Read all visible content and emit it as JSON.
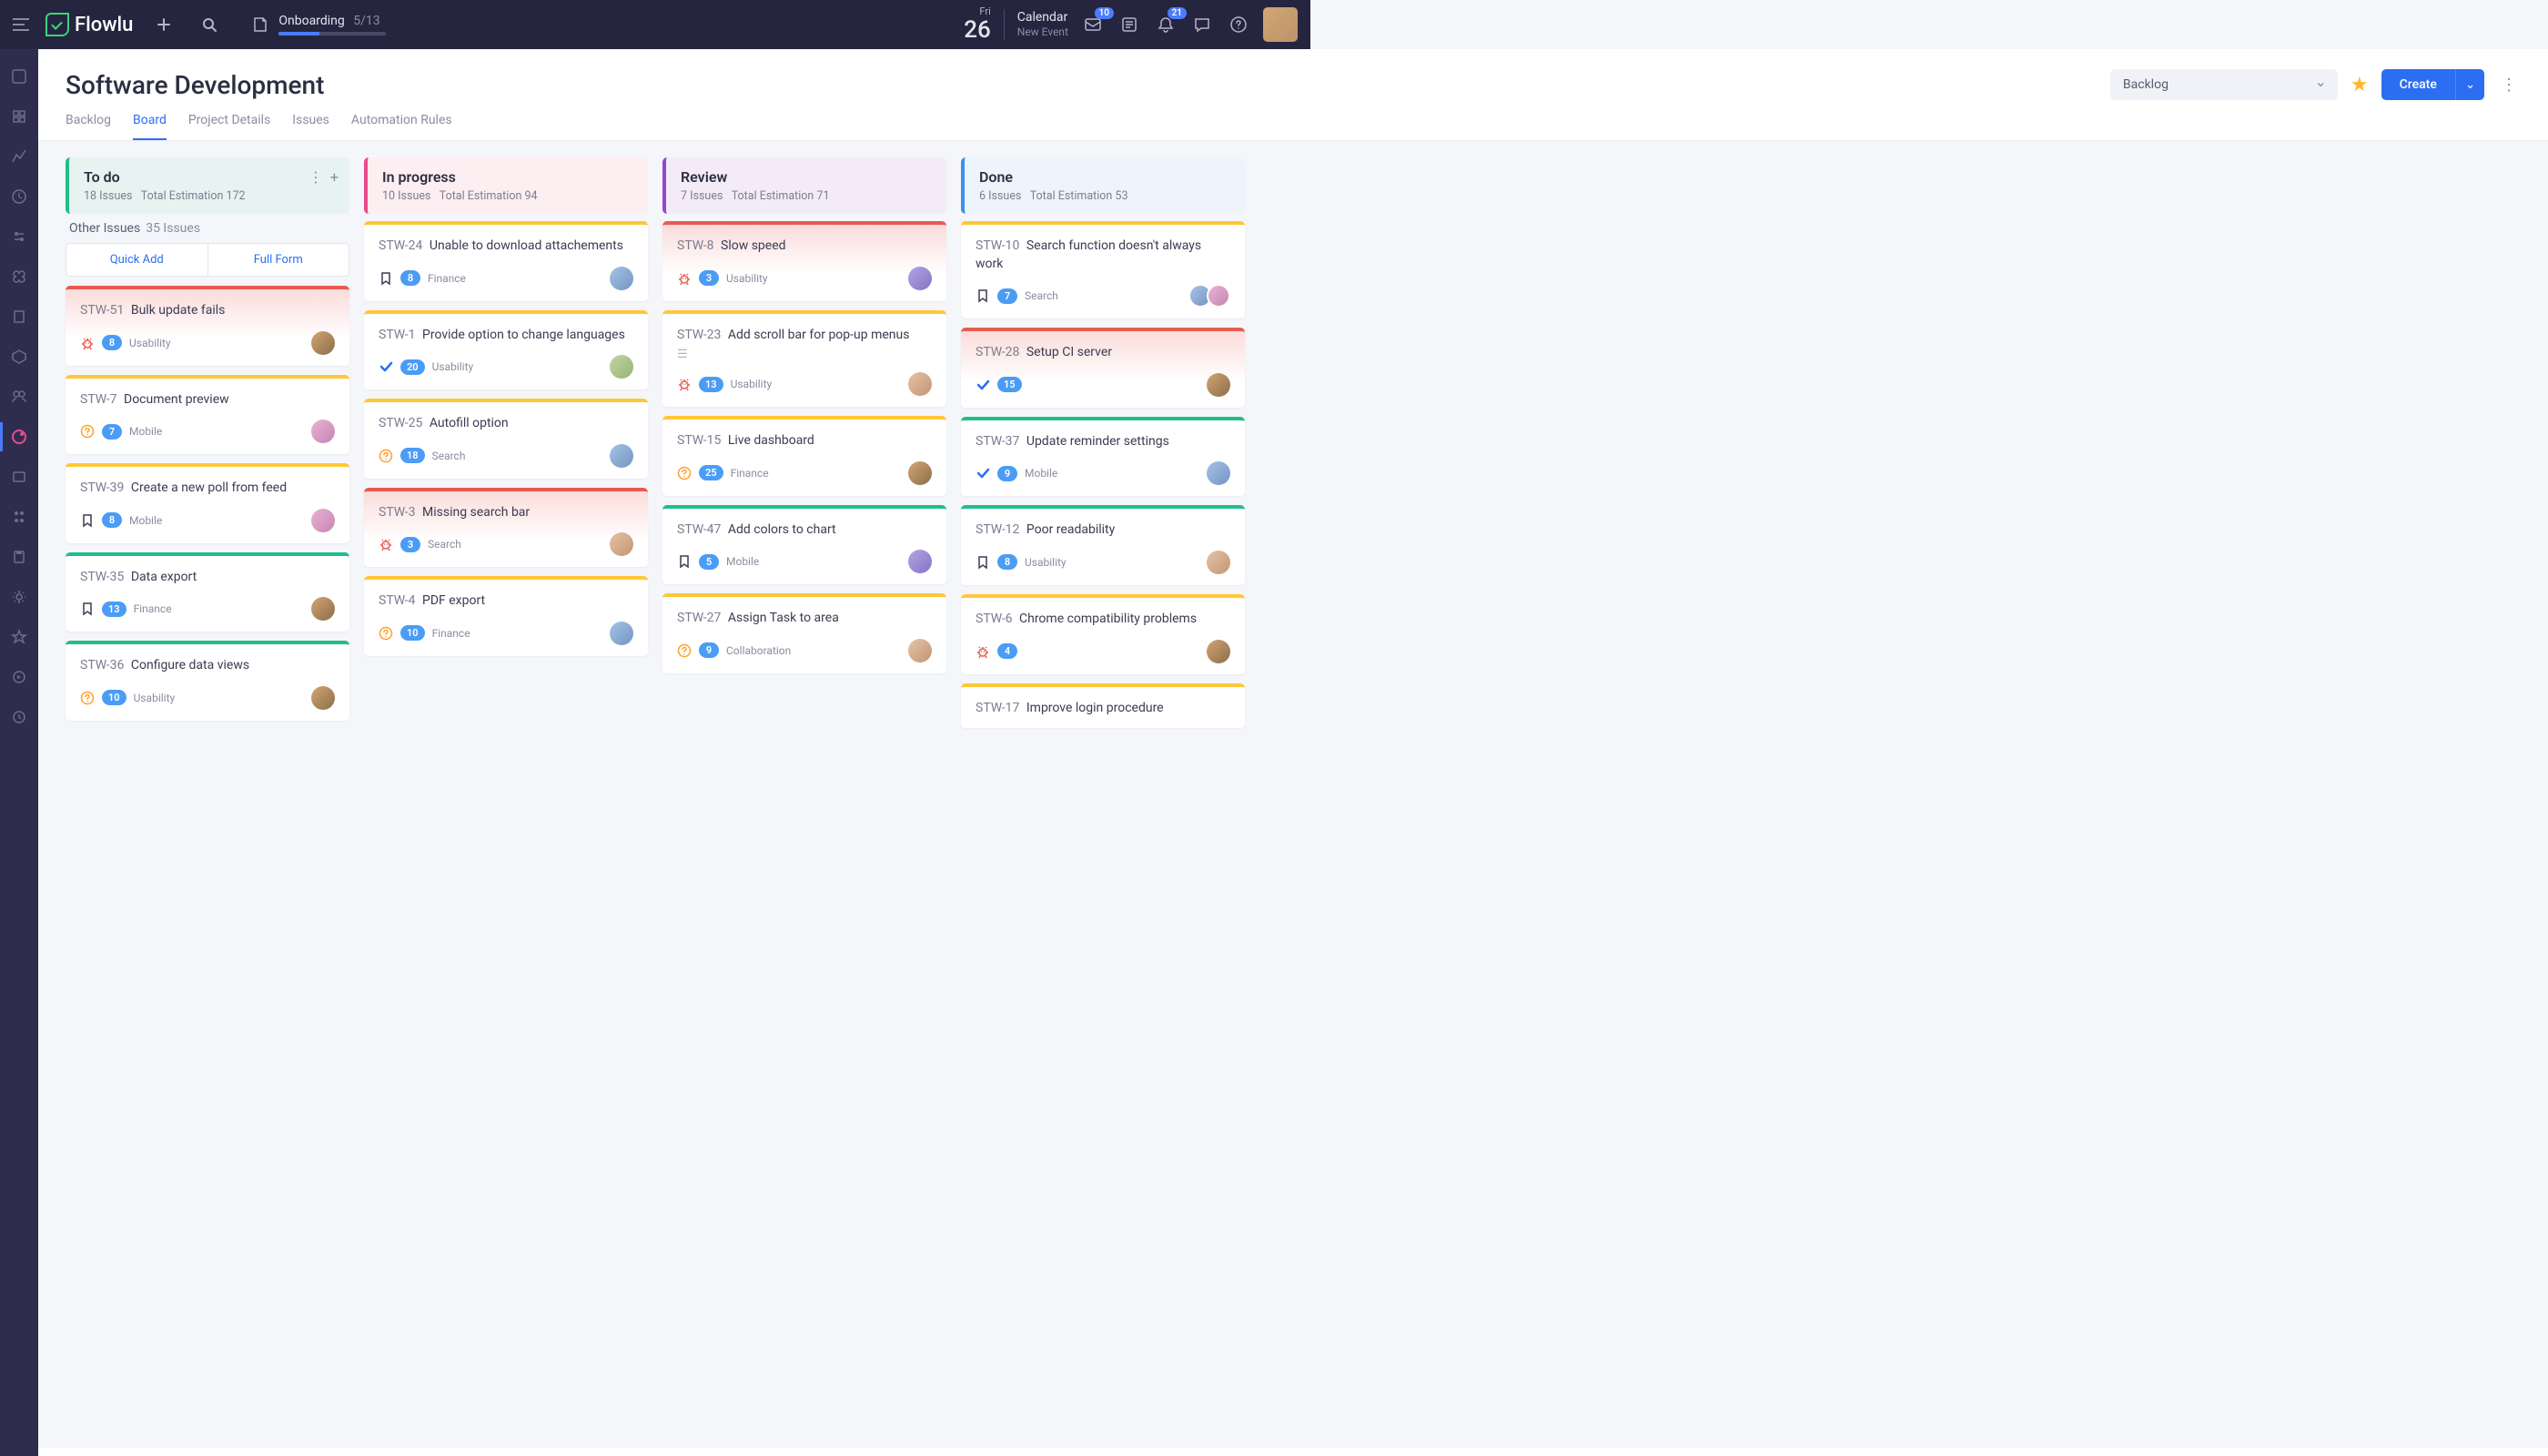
{
  "app": {
    "name": "Flowlu"
  },
  "onboarding": {
    "label": "Onboarding",
    "progress_text": "5/13",
    "progress_percent": 38
  },
  "topbar": {
    "date_day": "Fri",
    "date_num": "26",
    "calendar_title": "Calendar",
    "calendar_sub": "New Event",
    "badge_inbox": "10",
    "badge_bell": "21"
  },
  "page": {
    "title": "Software Development",
    "view_select": "Backlog",
    "create_label": "Create",
    "tabs": [
      "Backlog",
      "Board",
      "Project Details",
      "Issues",
      "Automation Rules"
    ],
    "active_tab": 1
  },
  "other_issues": {
    "label": "Other Issues",
    "count": "35 Issues"
  },
  "quick": {
    "add": "Quick Add",
    "full": "Full Form"
  },
  "columns": [
    {
      "id": "todo",
      "title": "To do",
      "count": "18 Issues",
      "est": "Total Estimation 172"
    },
    {
      "id": "progress",
      "title": "In progress",
      "count": "10 Issues",
      "est": "Total Estimation 94"
    },
    {
      "id": "review",
      "title": "Review",
      "count": "7 Issues",
      "est": "Total Estimation 71"
    },
    {
      "id": "done",
      "title": "Done",
      "count": "6 Issues",
      "est": "Total Estimation 53"
    }
  ],
  "cards": {
    "todo": [
      {
        "key": "STW-51",
        "title": "Bulk update fails",
        "tone": "red",
        "icon": "bug",
        "count": "8",
        "tag": "Usability",
        "av": "a1"
      },
      {
        "key": "STW-7",
        "title": "Document preview",
        "tone": "yellow",
        "icon": "question",
        "count": "7",
        "tag": "Mobile",
        "av": "a2"
      },
      {
        "key": "STW-39",
        "title": "Create a new poll from feed",
        "tone": "yellow",
        "icon": "bookmark",
        "count": "8",
        "tag": "Mobile",
        "av": "a2"
      },
      {
        "key": "STW-35",
        "title": "Data export",
        "tone": "green",
        "icon": "bookmark",
        "count": "13",
        "tag": "Finance",
        "av": "a1"
      },
      {
        "key": "STW-36",
        "title": "Configure data views",
        "tone": "green",
        "icon": "question",
        "count": "10",
        "tag": "Usability",
        "av": "a1"
      }
    ],
    "progress": [
      {
        "key": "STW-24",
        "title": "Unable to download attachements",
        "tone": "yellow",
        "icon": "bookmark",
        "count": "8",
        "tag": "Finance",
        "av": "a3"
      },
      {
        "key": "STW-1",
        "title": "Provide option to change languages",
        "tone": "yellow",
        "icon": "check",
        "count": "20",
        "tag": "Usability",
        "av": "a4"
      },
      {
        "key": "STW-25",
        "title": "Autofill option",
        "tone": "yellow",
        "icon": "question",
        "count": "18",
        "tag": "Search",
        "av": "a3"
      },
      {
        "key": "STW-3",
        "title": "Missing search bar",
        "tone": "red",
        "icon": "bug",
        "count": "3",
        "tag": "Search",
        "av": "a5"
      },
      {
        "key": "STW-4",
        "title": "PDF export",
        "tone": "yellow",
        "icon": "question",
        "count": "10",
        "tag": "Finance",
        "av": "a3"
      }
    ],
    "review": [
      {
        "key": "STW-8",
        "title": "Slow speed",
        "tone": "red",
        "icon": "bug",
        "count": "3",
        "tag": "Usability",
        "av": "a6"
      },
      {
        "key": "STW-23",
        "title": "Add scroll bar for pop-up menus",
        "tone": "yellow",
        "icon": "bug",
        "count": "13",
        "tag": "Usability",
        "av": "a5",
        "lines": true
      },
      {
        "key": "STW-15",
        "title": "Live dashboard",
        "tone": "yellow",
        "icon": "question",
        "count": "25",
        "tag": "Finance",
        "av": "a1"
      },
      {
        "key": "STW-47",
        "title": "Add colors to chart",
        "tone": "green",
        "icon": "bookmark",
        "count": "5",
        "tag": "Mobile",
        "av": "a6"
      },
      {
        "key": "STW-27",
        "title": "Assign Task to area",
        "tone": "yellow",
        "icon": "question",
        "count": "9",
        "tag": "Collaboration",
        "av": "a5"
      }
    ],
    "done": [
      {
        "key": "STW-10",
        "title": "Search function doesn't always work",
        "tone": "yellow",
        "icon": "bookmark",
        "count": "7",
        "tag": "Search",
        "av": "multi"
      },
      {
        "key": "STW-28",
        "title": "Setup CI server",
        "tone": "red",
        "icon": "check",
        "count": "15",
        "tag": "",
        "av": "a1"
      },
      {
        "key": "STW-37",
        "title": "Update reminder settings",
        "tone": "green",
        "icon": "check",
        "count": "9",
        "tag": "Mobile",
        "av": "a3"
      },
      {
        "key": "STW-12",
        "title": "Poor readability",
        "tone": "green",
        "icon": "bookmark",
        "count": "8",
        "tag": "Usability",
        "av": "a5"
      },
      {
        "key": "STW-6",
        "title": "Chrome compatibility problems",
        "tone": "yellow",
        "icon": "bug",
        "count": "4",
        "tag": "",
        "av": "a1"
      },
      {
        "key": "STW-17",
        "title": "Improve login procedure",
        "tone": "yellow",
        "icon": "",
        "count": "",
        "tag": "",
        "av": ""
      }
    ]
  },
  "iconColors": {
    "bug": "#e85a51",
    "question": "#ff9f2e",
    "check": "#2c6ef2",
    "bookmark": "#3a3c52"
  }
}
